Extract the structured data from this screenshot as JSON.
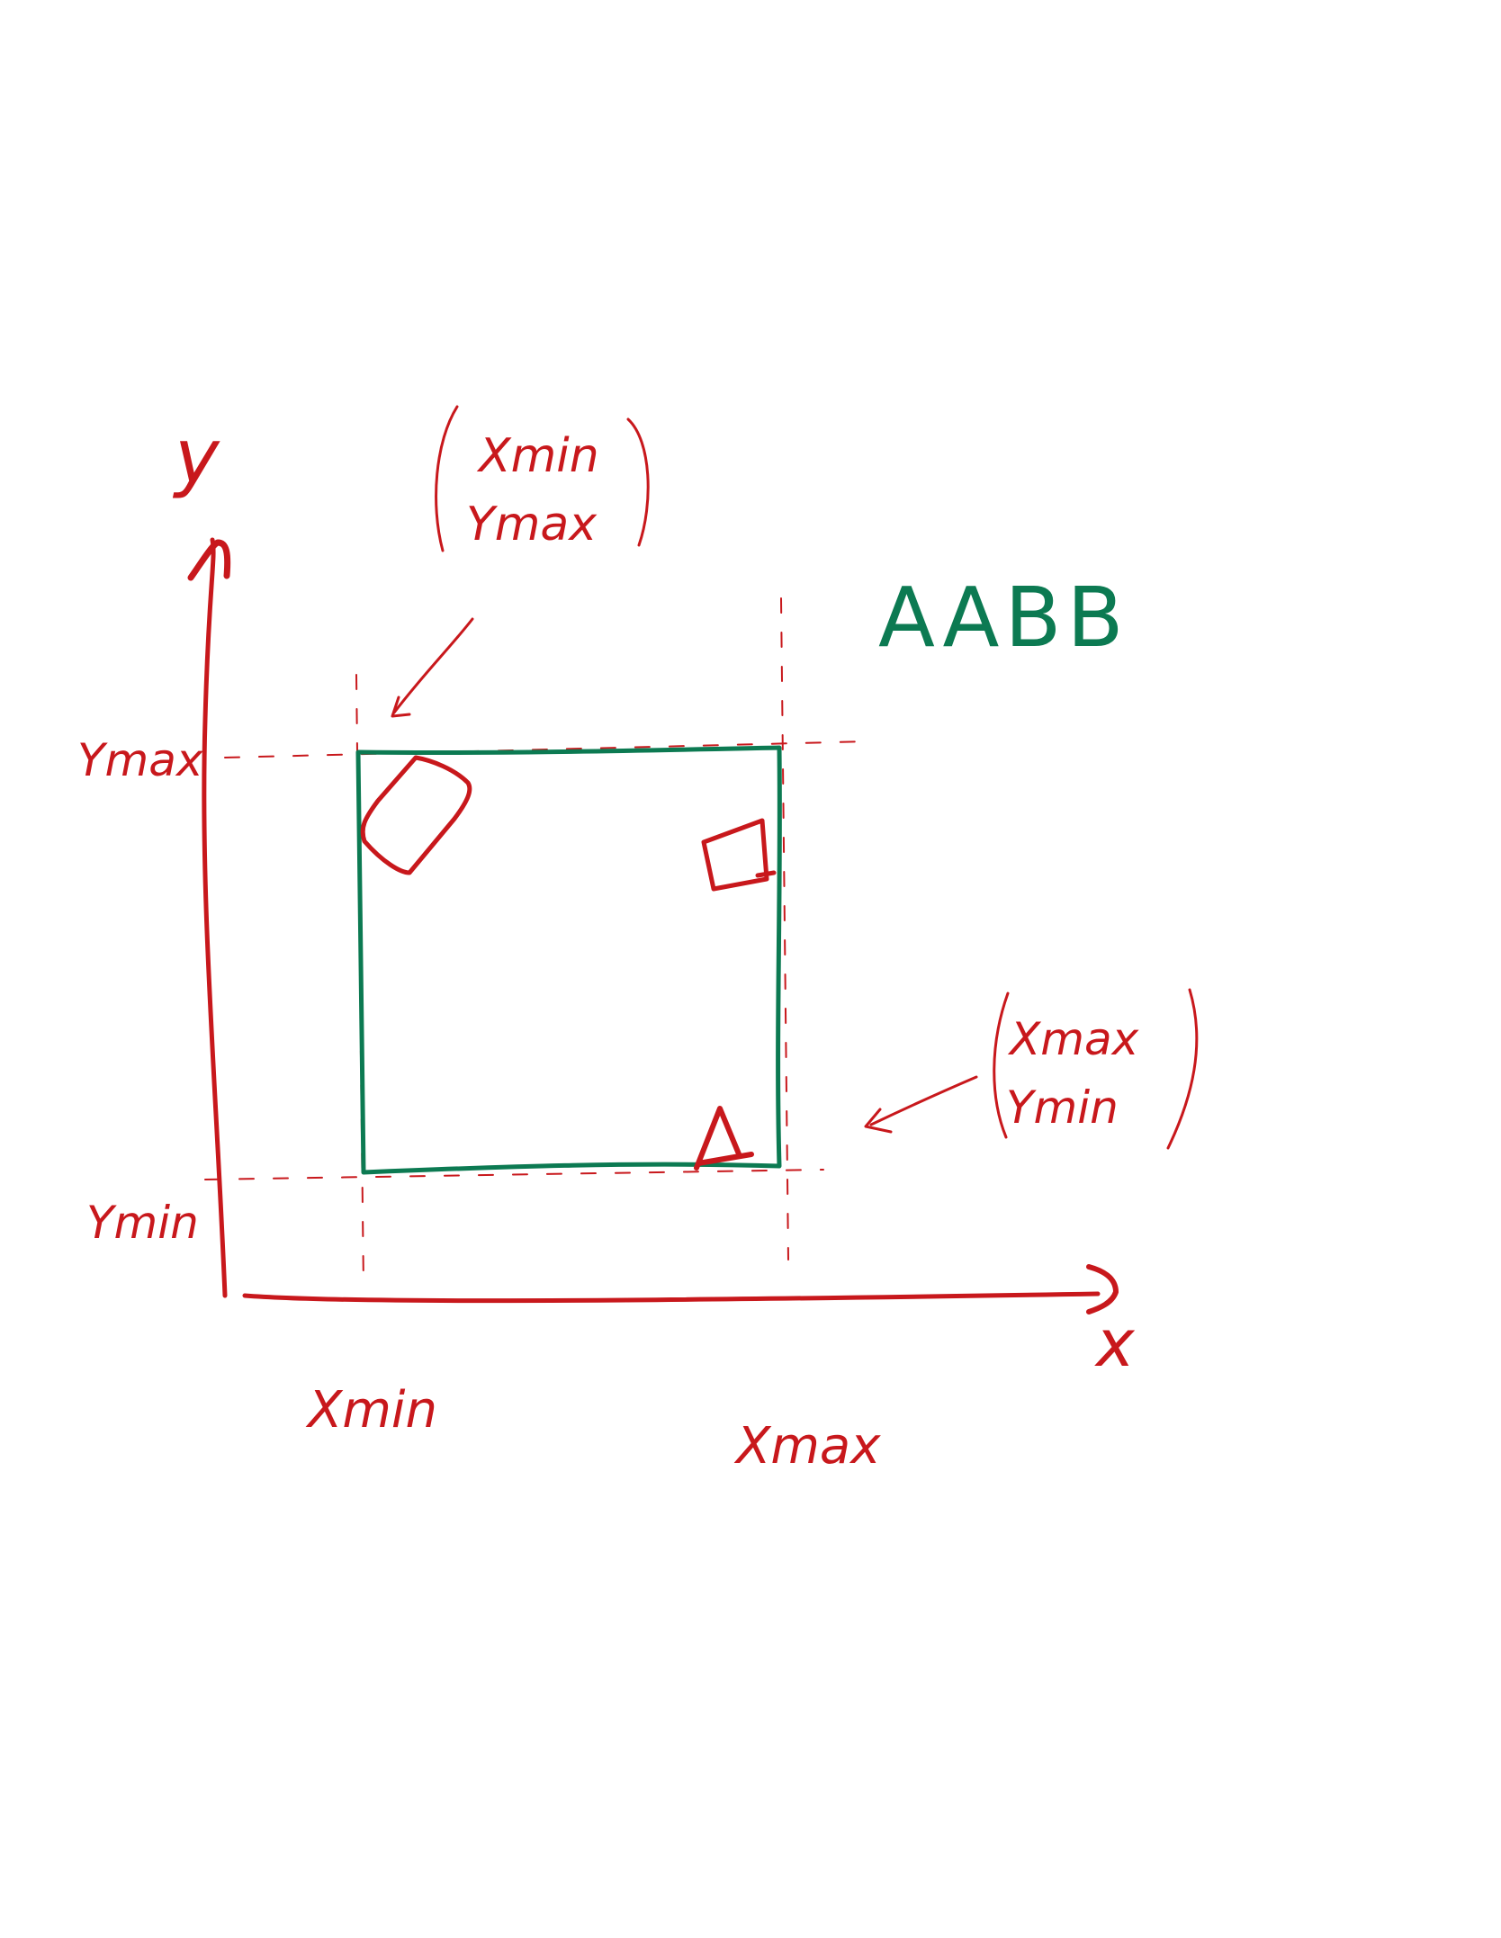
{
  "labels": {
    "axis_y": "y",
    "axis_x": "x",
    "y_max": "Ymax",
    "y_min": "Ymin",
    "x_min": "Xmin",
    "x_max": "Xmax",
    "corner_top_left_line1": "Xmin",
    "corner_top_left_line2": "Ymax",
    "corner_bottom_right_line1": "Xmax",
    "corner_bottom_right_line2": "Ymin",
    "box_title": "AABB"
  },
  "colors": {
    "ink_red": "#c8181c",
    "ink_green": "#0c7a52",
    "background": "#ffffff"
  }
}
